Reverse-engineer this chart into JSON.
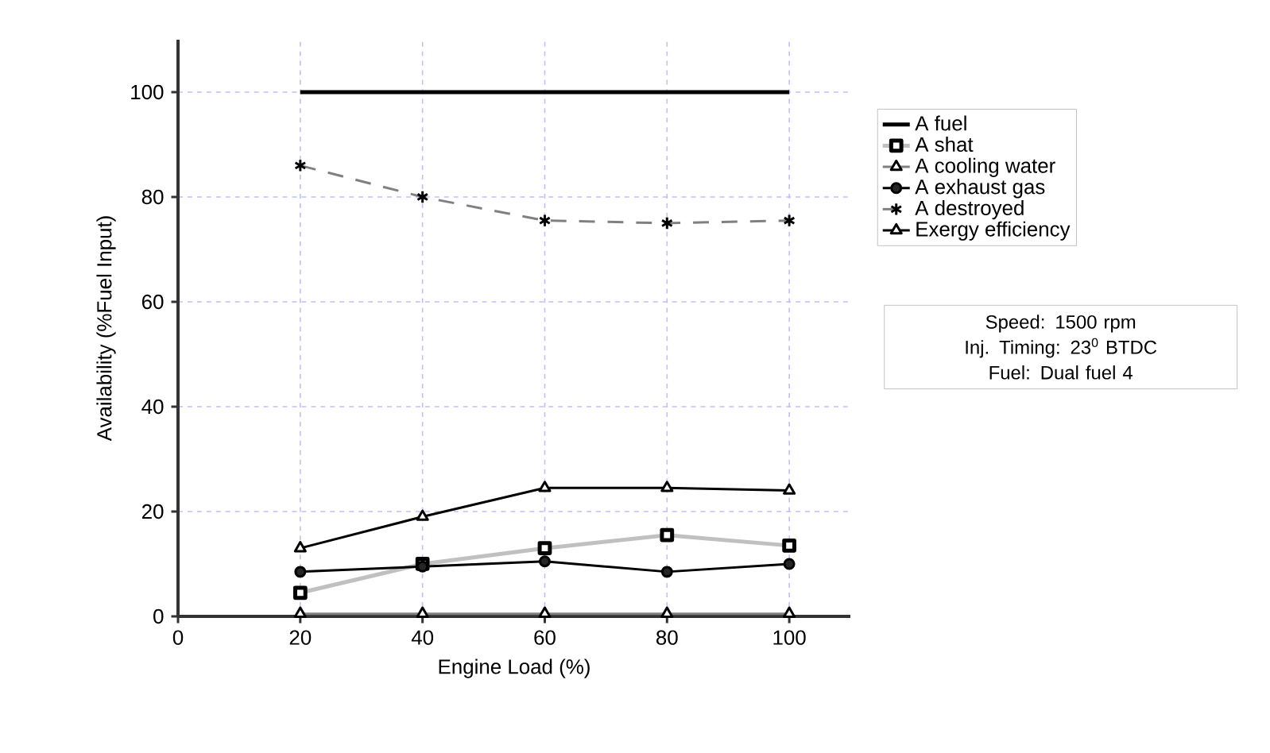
{
  "chart_data": {
    "type": "line",
    "xlabel": "Engine Load (%)",
    "ylabel": "Availability (%Fuel Input)",
    "x": [
      20,
      40,
      60,
      80,
      100
    ],
    "series": [
      {
        "name": "A fuel",
        "color": "#000000",
        "marker": "none",
        "line_style": "solid",
        "values": [
          100,
          100,
          100,
          100,
          100
        ]
      },
      {
        "name": "A shat",
        "color": "#c0c0c0",
        "marker": "square",
        "line_style": "solid",
        "values": [
          4.5,
          10,
          13,
          15.5,
          13.5
        ]
      },
      {
        "name": "A cooling water",
        "color": "#808080",
        "marker": "triangle",
        "line_style": "solid",
        "values": [
          0.5,
          0.5,
          0.5,
          0.5,
          0.5
        ]
      },
      {
        "name": "A exhaust gas",
        "color": "#000000",
        "marker": "circle",
        "line_style": "solid",
        "values": [
          8.5,
          9.5,
          10.5,
          8.5,
          10
        ]
      },
      {
        "name": "A destroyed",
        "color": "#808080",
        "marker": "cross",
        "line_style": "dashed",
        "values": [
          86,
          80,
          75.5,
          75,
          75.5
        ]
      },
      {
        "name": "Exergy efficiency",
        "color": "#000000",
        "marker": "triangle",
        "line_style": "solid",
        "values": [
          13,
          19,
          24.5,
          24.5,
          24
        ]
      }
    ],
    "xlim": [
      0,
      110
    ],
    "xticks": [
      0,
      20,
      40,
      60,
      80,
      100
    ],
    "ylim": [
      0,
      110
    ],
    "yticks": [
      0,
      20,
      40,
      60,
      80,
      100
    ],
    "grid": true,
    "legend": "right",
    "annotations": [
      "Speed: 1500 rpm",
      "Inj. Timing: 23$^{0}$ BTDC",
      "Fuel: Dual fuel 4"
    ]
  }
}
